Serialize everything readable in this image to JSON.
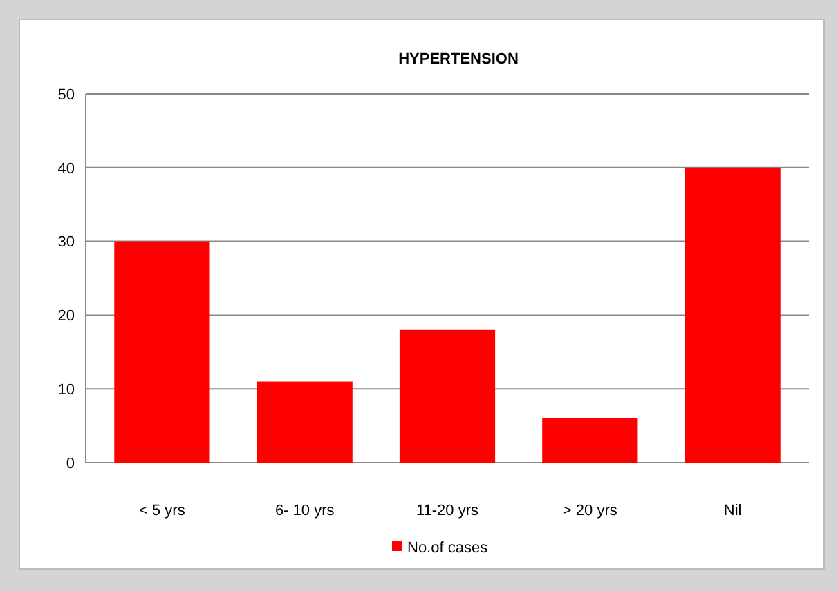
{
  "chart_data": {
    "type": "bar",
    "title": "HYPERTENSION",
    "categories": [
      "< 5 yrs",
      "6- 10 yrs",
      "11-20 yrs",
      "> 20 yrs",
      "Nil"
    ],
    "series": [
      {
        "name": "No.of cases",
        "color": "#ff0000",
        "values": [
          30,
          11,
          18,
          6,
          40
        ]
      }
    ],
    "ylim": [
      0,
      50
    ],
    "yticks": [
      0,
      10,
      20,
      30,
      40,
      50
    ],
    "grid": "y",
    "legend": "bottom"
  }
}
